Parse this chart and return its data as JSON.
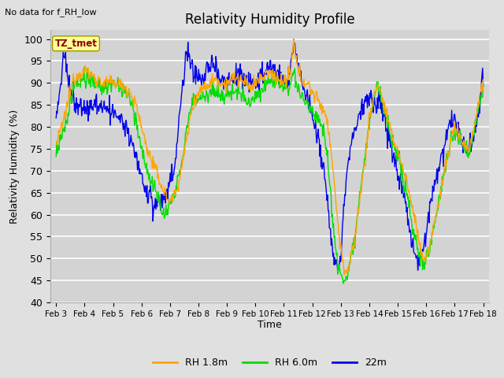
{
  "title": "Relativity Humidity Profile",
  "subtitle": "No data for f_RH_low",
  "ylabel": "Relativity Humidity (%)",
  "xlabel": "Time",
  "ylim": [
    40,
    102
  ],
  "yticks": [
    40,
    45,
    50,
    55,
    60,
    65,
    70,
    75,
    80,
    85,
    90,
    95,
    100
  ],
  "bg_color": "#e0e0e0",
  "plot_bg_color": "#d3d3d3",
  "grid_color": "#ffffff",
  "colors": {
    "RH_1.8m": "#ffa500",
    "RH_6.0m": "#00dd00",
    "22m": "#0000ee"
  },
  "legend_labels": [
    "RH 1.8m",
    "RH 6.0m",
    "22m"
  ],
  "tz_label": "TZ_tmet",
  "tz_box_color": "#ffff99",
  "tz_text_color": "#8b0000",
  "start_day": 3,
  "end_day": 18,
  "month": "Feb",
  "xtick_labels": [
    "Feb 3",
    "Feb 4",
    "Feb 5",
    "Feb 6",
    "Feb 7",
    "Feb 8",
    "Feb 9",
    "Feb 10",
    "Feb 11",
    "Feb 12",
    "Feb 13",
    "Feb 14",
    "Feb 15",
    "Feb 16",
    "Feb 17",
    "Feb 18"
  ],
  "figsize": [
    6.4,
    4.8
  ],
  "dpi": 100
}
